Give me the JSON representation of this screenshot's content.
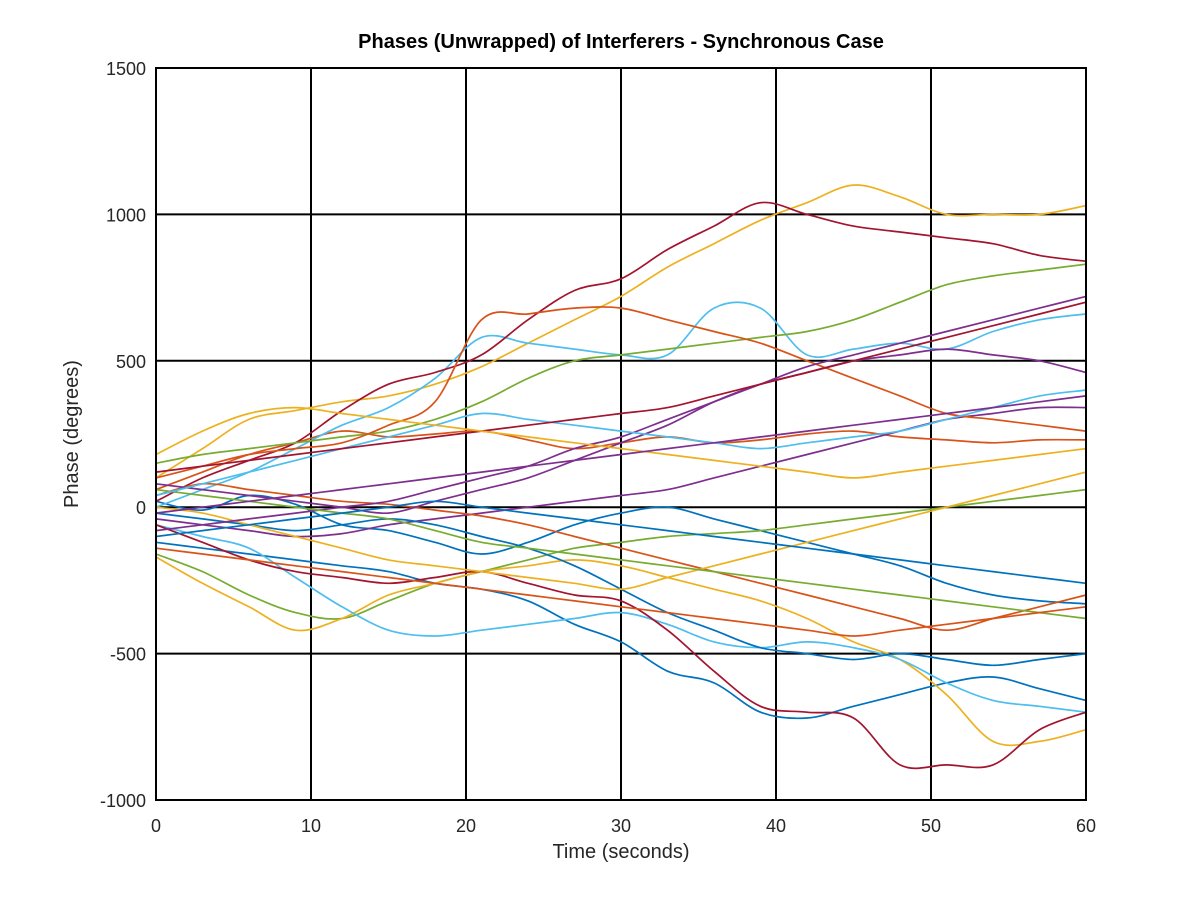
{
  "chart_data": {
    "type": "line",
    "title": "Phases (Unwrapped) of Interferers - Synchronous Case",
    "xlabel": "Time (seconds)",
    "ylabel": "Phase (degrees)",
    "xlim": [
      0,
      60
    ],
    "ylim": [
      -1000,
      1500
    ],
    "xticks": [
      0,
      10,
      20,
      30,
      40,
      50,
      60
    ],
    "yticks": [
      -1000,
      -500,
      0,
      500,
      1000,
      1500
    ],
    "xtick_labels": [
      "0",
      "10",
      "20",
      "30",
      "40",
      "50",
      "60"
    ],
    "ytick_labels": [
      "-1000",
      "-500",
      "0",
      "500",
      "1000",
      "1500"
    ],
    "grid": true,
    "legend": "none",
    "colors": [
      "#0072BD",
      "#D95319",
      "#EDB120",
      "#7E2F8E",
      "#77AC30",
      "#4DBEEE",
      "#A2142F"
    ],
    "x": [
      0,
      3,
      6,
      9,
      12,
      15,
      18,
      21,
      24,
      27,
      30,
      33,
      36,
      39,
      42,
      45,
      48,
      51,
      54,
      57,
      60
    ],
    "series": [
      {
        "color": "#0072BD",
        "values": [
          20,
          -10,
          40,
          10,
          -60,
          -80,
          -120,
          -160,
          -120,
          -60,
          -20,
          0,
          -40,
          -80,
          -120,
          -160,
          -200,
          -260,
          -300,
          -320,
          -330
        ]
      },
      {
        "color": "#D95319",
        "values": [
          60,
          120,
          180,
          220,
          260,
          240,
          250,
          260,
          230,
          200,
          220,
          240,
          220,
          230,
          250,
          260,
          240,
          230,
          220,
          230,
          230
        ]
      },
      {
        "color": "#EDB120",
        "values": [
          100,
          200,
          300,
          330,
          360,
          380,
          420,
          480,
          560,
          640,
          720,
          820,
          900,
          980,
          1040,
          1100,
          1060,
          1000,
          1000,
          1000,
          1030
        ]
      },
      {
        "color": "#7E2F8E",
        "values": [
          -40,
          -60,
          -80,
          -100,
          -90,
          -60,
          -40,
          -20,
          0,
          20,
          40,
          60,
          100,
          140,
          180,
          220,
          260,
          300,
          320,
          340,
          340
        ]
      },
      {
        "color": "#77AC30",
        "values": [
          -160,
          -220,
          -300,
          -360,
          -380,
          -320,
          -260,
          -220,
          -180,
          -140,
          -120,
          -100,
          -90,
          -80,
          -60,
          -40,
          -20,
          0,
          20,
          40,
          60
        ]
      },
      {
        "color": "#4DBEEE",
        "values": [
          0,
          60,
          120,
          200,
          280,
          340,
          440,
          580,
          560,
          540,
          520,
          520,
          680,
          680,
          520,
          540,
          560,
          540,
          600,
          640,
          660
        ]
      },
      {
        "color": "#A2142F",
        "values": [
          20,
          100,
          160,
          220,
          330,
          420,
          460,
          520,
          640,
          740,
          780,
          880,
          960,
          1040,
          1000,
          960,
          940,
          920,
          900,
          860,
          840
        ]
      },
      {
        "color": "#0072BD",
        "values": [
          -120,
          -140,
          -160,
          -180,
          -200,
          -220,
          -260,
          -280,
          -320,
          -400,
          -460,
          -560,
          -600,
          -700,
          -720,
          -680,
          -640,
          -600,
          -580,
          -620,
          -660
        ]
      },
      {
        "color": "#D95319",
        "values": [
          40,
          80,
          60,
          40,
          20,
          10,
          -10,
          -30,
          -60,
          -100,
          -140,
          -180,
          -220,
          -260,
          -300,
          -340,
          -380,
          -420,
          -380,
          -340,
          -300
        ]
      },
      {
        "color": "#EDB120",
        "values": [
          -170,
          -260,
          -340,
          -420,
          -380,
          -300,
          -260,
          -220,
          -200,
          -180,
          -200,
          -240,
          -280,
          -320,
          -380,
          -460,
          -520,
          -640,
          -800,
          -800,
          -760
        ]
      },
      {
        "color": "#7E2F8E",
        "values": [
          80,
          60,
          40,
          20,
          0,
          -20,
          20,
          60,
          100,
          160,
          220,
          280,
          360,
          420,
          460,
          500,
          520,
          540,
          520,
          500,
          460
        ]
      },
      {
        "color": "#77AC30",
        "values": [
          150,
          180,
          200,
          220,
          240,
          260,
          300,
          360,
          440,
          500,
          520,
          540,
          560,
          580,
          600,
          640,
          700,
          760,
          790,
          810,
          830
        ]
      },
      {
        "color": "#4DBEEE",
        "values": [
          -60,
          -100,
          -140,
          -240,
          -340,
          -420,
          -440,
          -420,
          -400,
          -380,
          -360,
          -400,
          -460,
          -480,
          -460,
          -480,
          -520,
          -600,
          -660,
          -680,
          -700
        ]
      },
      {
        "color": "#A2142F",
        "values": [
          -60,
          -120,
          -180,
          -220,
          -240,
          -260,
          -240,
          -220,
          -260,
          -300,
          -320,
          -420,
          -560,
          -680,
          -700,
          -720,
          -880,
          -880,
          -880,
          -760,
          -700
        ]
      },
      {
        "color": "#0072BD",
        "values": [
          -20,
          -40,
          -60,
          -80,
          -60,
          -40,
          -60,
          -100,
          -140,
          -200,
          -280,
          -360,
          -420,
          -480,
          -500,
          -520,
          -500,
          -520,
          -540,
          -520,
          -500
        ]
      },
      {
        "color": "#D95319",
        "values": [
          100,
          140,
          180,
          200,
          220,
          280,
          360,
          640,
          660,
          680,
          680,
          640,
          600,
          560,
          500,
          440,
          380,
          320,
          300,
          280,
          260
        ]
      },
      {
        "color": "#EDB120",
        "values": [
          0,
          -20,
          -60,
          -100,
          -140,
          -180,
          -200,
          -220,
          -240,
          -260,
          -280,
          -240,
          -200,
          -160,
          -120,
          -80,
          -40,
          0,
          40,
          80,
          120
        ]
      },
      {
        "color": "#7E2F8E",
        "values": [
          -80,
          -60,
          -40,
          -20,
          0,
          20,
          60,
          100,
          140,
          200,
          240,
          300,
          360,
          420,
          480,
          520,
          560,
          600,
          640,
          680,
          720
        ]
      },
      {
        "color": "#77AC30",
        "values": [
          60,
          40,
          20,
          0,
          -20,
          -40,
          -80,
          -120,
          -140,
          -160,
          -180,
          -200,
          -220,
          -240,
          -260,
          -280,
          -300,
          -320,
          -340,
          -360,
          -380
        ]
      },
      {
        "color": "#4DBEEE",
        "values": [
          40,
          80,
          120,
          160,
          200,
          240,
          280,
          320,
          300,
          280,
          260,
          240,
          220,
          200,
          220,
          240,
          260,
          300,
          340,
          380,
          400
        ]
      },
      {
        "color": "#A2142F",
        "values": [
          120,
          140,
          160,
          180,
          200,
          220,
          240,
          260,
          280,
          300,
          320,
          340,
          380,
          420,
          460,
          500,
          540,
          580,
          620,
          660,
          700
        ]
      },
      {
        "color": "#0072BD",
        "values": [
          -100,
          -80,
          -60,
          -40,
          -20,
          0,
          20,
          0,
          -20,
          -40,
          -60,
          -80,
          -100,
          -120,
          -140,
          -160,
          -180,
          -200,
          -220,
          -240,
          -260
        ]
      },
      {
        "color": "#D95319",
        "values": [
          -140,
          -160,
          -180,
          -200,
          -220,
          -240,
          -260,
          -280,
          -300,
          -320,
          -340,
          -360,
          -380,
          -400,
          -420,
          -440,
          -420,
          -400,
          -380,
          -360,
          -340
        ]
      },
      {
        "color": "#EDB120",
        "values": [
          180,
          260,
          320,
          340,
          320,
          300,
          280,
          260,
          240,
          220,
          200,
          180,
          160,
          140,
          120,
          100,
          120,
          140,
          160,
          180,
          200
        ]
      },
      {
        "color": "#7E2F8E",
        "values": [
          -20,
          0,
          20,
          40,
          60,
          80,
          100,
          120,
          140,
          160,
          180,
          200,
          220,
          240,
          260,
          280,
          300,
          320,
          340,
          360,
          380
        ]
      }
    ]
  }
}
